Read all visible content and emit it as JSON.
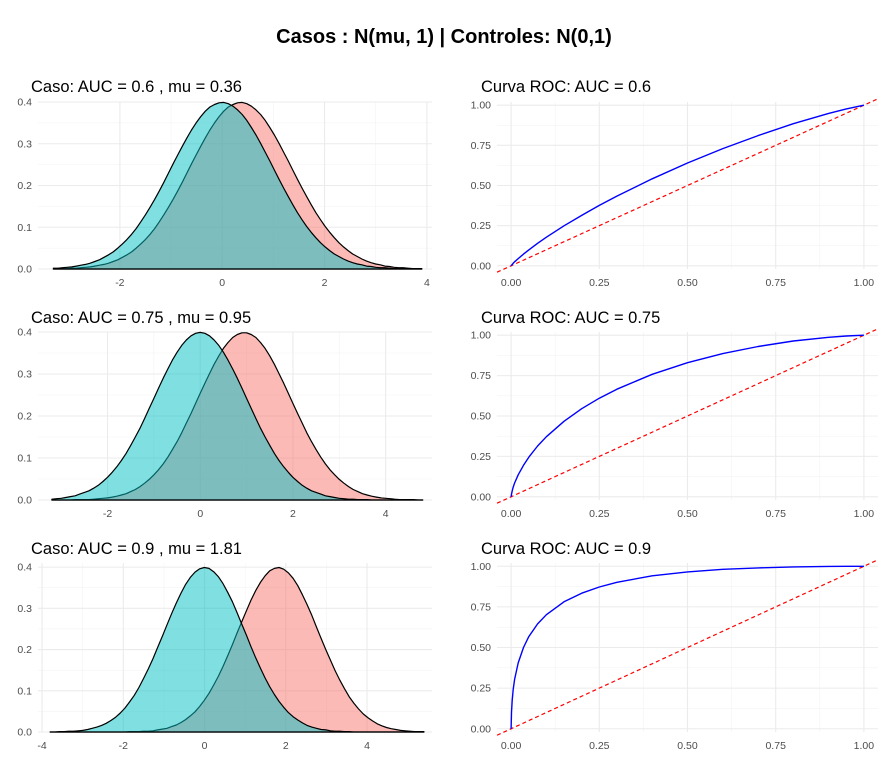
{
  "title": "Casos : N(mu, 1) | Controles: N(0,1)",
  "colors": {
    "case_fill": "#F8766D",
    "control_fill": "#00BFC4",
    "roc_line": "#0000FF",
    "diagonal": "#FF0000",
    "grid": "#EBEBEB"
  },
  "chart_data": [
    {
      "type": "area",
      "title": "Caso: AUC =  0.6 , mu =  0.36",
      "mu": 0.36,
      "series": [],
      "xlim": [
        -3.6,
        4.1
      ],
      "ylim": [
        0,
        0.4
      ],
      "xticks": [
        "-2",
        "0",
        "2",
        "4"
      ],
      "yticks": [
        "0.0",
        "0.1",
        "0.2",
        "0.3",
        "0.4"
      ],
      "grid": true,
      "legend": "none"
    },
    {
      "type": "line",
      "title": "Curva ROC: AUC =  0.6",
      "auc": 0.6,
      "series": [],
      "xlim": [
        -0.04,
        1.04
      ],
      "ylim": [
        -0.02,
        1.02
      ],
      "xticks": [
        "0.00",
        "0.25",
        "0.50",
        "0.75",
        "1.00"
      ],
      "yticks": [
        "0.00",
        "0.25",
        "0.50",
        "0.75",
        "1.00"
      ],
      "grid": true,
      "legend": "none"
    },
    {
      "type": "area",
      "title": "Caso: AUC =  0.75 , mu =  0.95",
      "mu": 0.95,
      "series": [],
      "xlim": [
        -3.5,
        5.0
      ],
      "ylim": [
        0,
        0.4
      ],
      "xticks": [
        "-2",
        "0",
        "2",
        "4"
      ],
      "yticks": [
        "0.0",
        "0.1",
        "0.2",
        "0.3",
        "0.4"
      ],
      "grid": true,
      "legend": "none"
    },
    {
      "type": "line",
      "title": "Curva ROC: AUC =  0.75",
      "auc": 0.75,
      "series": [],
      "xlim": [
        -0.04,
        1.04
      ],
      "ylim": [
        -0.02,
        1.02
      ],
      "xticks": [
        "0.00",
        "0.25",
        "0.50",
        "0.75",
        "1.00"
      ],
      "yticks": [
        "0.00",
        "0.25",
        "0.50",
        "0.75",
        "1.00"
      ],
      "grid": true,
      "legend": "none"
    },
    {
      "type": "area",
      "title": "Caso: AUC =  0.9 , mu =  1.81",
      "mu": 1.81,
      "series": [],
      "xlim": [
        -4.1,
        5.6
      ],
      "ylim": [
        0,
        0.41
      ],
      "xticks": [
        "-4",
        "-2",
        "0",
        "2",
        "4"
      ],
      "yticks": [
        "0.0",
        "0.1",
        "0.2",
        "0.3",
        "0.4"
      ],
      "grid": true,
      "legend": "none"
    },
    {
      "type": "line",
      "title": "Curva ROC: AUC =  0.9",
      "auc": 0.9,
      "series": [],
      "xlim": [
        -0.04,
        1.04
      ],
      "ylim": [
        -0.02,
        1.02
      ],
      "xticks": [
        "0.00",
        "0.25",
        "0.50",
        "0.75",
        "1.00"
      ],
      "yticks": [
        "0.00",
        "0.25",
        "0.50",
        "0.75",
        "1.00"
      ],
      "grid": true,
      "legend": "none"
    }
  ]
}
